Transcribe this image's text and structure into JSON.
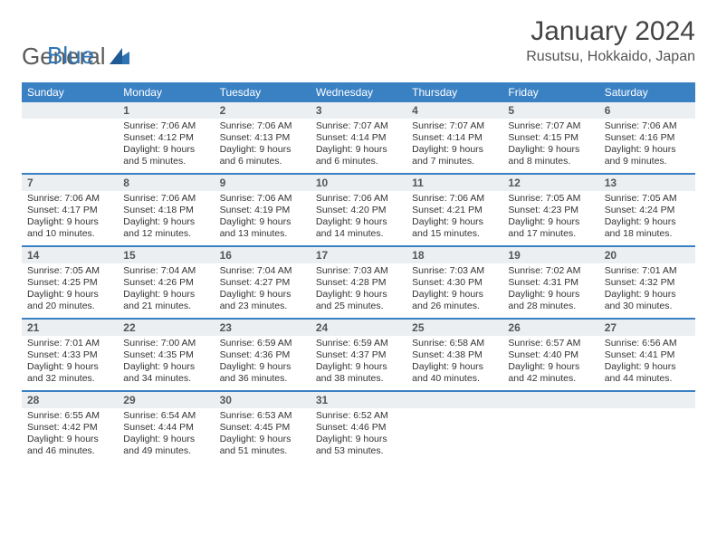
{
  "brand": {
    "part1": "General",
    "part2": "Blue"
  },
  "title": "January 2024",
  "location": "Rusutsu, Hokkaido, Japan",
  "colors": {
    "header_bar": "#3a81c4",
    "daynum_bg": "#eceff2",
    "week_rule": "#3a81c4",
    "text": "#333333",
    "title_text": "#444444",
    "bg": "#ffffff"
  },
  "daynames": [
    "Sunday",
    "Monday",
    "Tuesday",
    "Wednesday",
    "Thursday",
    "Friday",
    "Saturday"
  ],
  "weeks": [
    [
      {
        "n": "",
        "lines": []
      },
      {
        "n": "1",
        "lines": [
          "Sunrise: 7:06 AM",
          "Sunset: 4:12 PM",
          "Daylight: 9 hours",
          "and 5 minutes."
        ]
      },
      {
        "n": "2",
        "lines": [
          "Sunrise: 7:06 AM",
          "Sunset: 4:13 PM",
          "Daylight: 9 hours",
          "and 6 minutes."
        ]
      },
      {
        "n": "3",
        "lines": [
          "Sunrise: 7:07 AM",
          "Sunset: 4:14 PM",
          "Daylight: 9 hours",
          "and 6 minutes."
        ]
      },
      {
        "n": "4",
        "lines": [
          "Sunrise: 7:07 AM",
          "Sunset: 4:14 PM",
          "Daylight: 9 hours",
          "and 7 minutes."
        ]
      },
      {
        "n": "5",
        "lines": [
          "Sunrise: 7:07 AM",
          "Sunset: 4:15 PM",
          "Daylight: 9 hours",
          "and 8 minutes."
        ]
      },
      {
        "n": "6",
        "lines": [
          "Sunrise: 7:06 AM",
          "Sunset: 4:16 PM",
          "Daylight: 9 hours",
          "and 9 minutes."
        ]
      }
    ],
    [
      {
        "n": "7",
        "lines": [
          "Sunrise: 7:06 AM",
          "Sunset: 4:17 PM",
          "Daylight: 9 hours",
          "and 10 minutes."
        ]
      },
      {
        "n": "8",
        "lines": [
          "Sunrise: 7:06 AM",
          "Sunset: 4:18 PM",
          "Daylight: 9 hours",
          "and 12 minutes."
        ]
      },
      {
        "n": "9",
        "lines": [
          "Sunrise: 7:06 AM",
          "Sunset: 4:19 PM",
          "Daylight: 9 hours",
          "and 13 minutes."
        ]
      },
      {
        "n": "10",
        "lines": [
          "Sunrise: 7:06 AM",
          "Sunset: 4:20 PM",
          "Daylight: 9 hours",
          "and 14 minutes."
        ]
      },
      {
        "n": "11",
        "lines": [
          "Sunrise: 7:06 AM",
          "Sunset: 4:21 PM",
          "Daylight: 9 hours",
          "and 15 minutes."
        ]
      },
      {
        "n": "12",
        "lines": [
          "Sunrise: 7:05 AM",
          "Sunset: 4:23 PM",
          "Daylight: 9 hours",
          "and 17 minutes."
        ]
      },
      {
        "n": "13",
        "lines": [
          "Sunrise: 7:05 AM",
          "Sunset: 4:24 PM",
          "Daylight: 9 hours",
          "and 18 minutes."
        ]
      }
    ],
    [
      {
        "n": "14",
        "lines": [
          "Sunrise: 7:05 AM",
          "Sunset: 4:25 PM",
          "Daylight: 9 hours",
          "and 20 minutes."
        ]
      },
      {
        "n": "15",
        "lines": [
          "Sunrise: 7:04 AM",
          "Sunset: 4:26 PM",
          "Daylight: 9 hours",
          "and 21 minutes."
        ]
      },
      {
        "n": "16",
        "lines": [
          "Sunrise: 7:04 AM",
          "Sunset: 4:27 PM",
          "Daylight: 9 hours",
          "and 23 minutes."
        ]
      },
      {
        "n": "17",
        "lines": [
          "Sunrise: 7:03 AM",
          "Sunset: 4:28 PM",
          "Daylight: 9 hours",
          "and 25 minutes."
        ]
      },
      {
        "n": "18",
        "lines": [
          "Sunrise: 7:03 AM",
          "Sunset: 4:30 PM",
          "Daylight: 9 hours",
          "and 26 minutes."
        ]
      },
      {
        "n": "19",
        "lines": [
          "Sunrise: 7:02 AM",
          "Sunset: 4:31 PM",
          "Daylight: 9 hours",
          "and 28 minutes."
        ]
      },
      {
        "n": "20",
        "lines": [
          "Sunrise: 7:01 AM",
          "Sunset: 4:32 PM",
          "Daylight: 9 hours",
          "and 30 minutes."
        ]
      }
    ],
    [
      {
        "n": "21",
        "lines": [
          "Sunrise: 7:01 AM",
          "Sunset: 4:33 PM",
          "Daylight: 9 hours",
          "and 32 minutes."
        ]
      },
      {
        "n": "22",
        "lines": [
          "Sunrise: 7:00 AM",
          "Sunset: 4:35 PM",
          "Daylight: 9 hours",
          "and 34 minutes."
        ]
      },
      {
        "n": "23",
        "lines": [
          "Sunrise: 6:59 AM",
          "Sunset: 4:36 PM",
          "Daylight: 9 hours",
          "and 36 minutes."
        ]
      },
      {
        "n": "24",
        "lines": [
          "Sunrise: 6:59 AM",
          "Sunset: 4:37 PM",
          "Daylight: 9 hours",
          "and 38 minutes."
        ]
      },
      {
        "n": "25",
        "lines": [
          "Sunrise: 6:58 AM",
          "Sunset: 4:38 PM",
          "Daylight: 9 hours",
          "and 40 minutes."
        ]
      },
      {
        "n": "26",
        "lines": [
          "Sunrise: 6:57 AM",
          "Sunset: 4:40 PM",
          "Daylight: 9 hours",
          "and 42 minutes."
        ]
      },
      {
        "n": "27",
        "lines": [
          "Sunrise: 6:56 AM",
          "Sunset: 4:41 PM",
          "Daylight: 9 hours",
          "and 44 minutes."
        ]
      }
    ],
    [
      {
        "n": "28",
        "lines": [
          "Sunrise: 6:55 AM",
          "Sunset: 4:42 PM",
          "Daylight: 9 hours",
          "and 46 minutes."
        ]
      },
      {
        "n": "29",
        "lines": [
          "Sunrise: 6:54 AM",
          "Sunset: 4:44 PM",
          "Daylight: 9 hours",
          "and 49 minutes."
        ]
      },
      {
        "n": "30",
        "lines": [
          "Sunrise: 6:53 AM",
          "Sunset: 4:45 PM",
          "Daylight: 9 hours",
          "and 51 minutes."
        ]
      },
      {
        "n": "31",
        "lines": [
          "Sunrise: 6:52 AM",
          "Sunset: 4:46 PM",
          "Daylight: 9 hours",
          "and 53 minutes."
        ]
      },
      {
        "n": "",
        "lines": []
      },
      {
        "n": "",
        "lines": []
      },
      {
        "n": "",
        "lines": []
      }
    ]
  ]
}
